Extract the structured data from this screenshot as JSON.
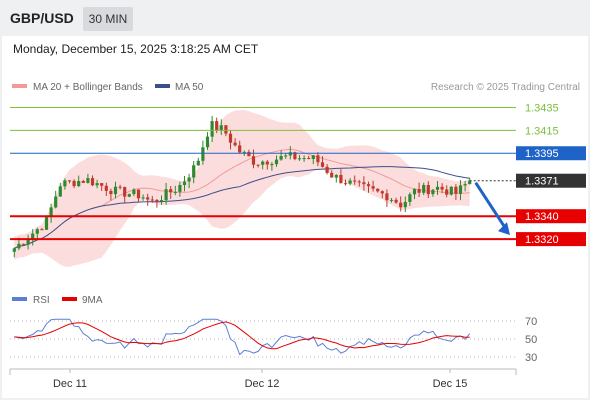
{
  "header": {
    "symbol": "GBP/USD",
    "timeframe": "30 MIN"
  },
  "timestamp": "Monday, December 15, 2025 3:18:25 AM CET",
  "legend": {
    "ma20": "MA 20 + Bollinger Bands",
    "ma50": "MA 50",
    "credit": "Research © 2025 Trading Central"
  },
  "rsi_legend": {
    "rsi": "RSI",
    "ma": "9MA"
  },
  "colors": {
    "resistance": "#7cbf3c",
    "pivot": "#1e63c8",
    "support": "#e60000",
    "candle_up": "#2f8a2f",
    "candle_down": "#c0392b",
    "band_fill": "#fbd7d7",
    "ma20": "#f29a9a",
    "ma50": "#3a4f8c",
    "rsi": "#5b7fd6",
    "rsi_ma": "#e60000",
    "arrow": "#1e63c8"
  },
  "chart_data": {
    "type": "candlestick",
    "y_range": [
      1.33,
      1.3445
    ],
    "levels": [
      {
        "role": "resistance",
        "label": "1.3435",
        "value": 1.3435
      },
      {
        "role": "resistance",
        "label": "1.3415",
        "value": 1.3415
      },
      {
        "role": "pivot",
        "label": "1.3395",
        "value": 1.3395
      },
      {
        "role": "last",
        "label": "1.3371",
        "value": 1.3371
      },
      {
        "role": "support",
        "label": "1.3340",
        "value": 1.334
      },
      {
        "role": "support",
        "label": "1.3320",
        "value": 1.332
      }
    ],
    "forecast": {
      "from": 1.3371,
      "to": 1.332
    },
    "x_ticks": [
      "Dec 11",
      "Dec 12",
      "Dec 15"
    ],
    "rsi": {
      "levels": [
        70,
        50,
        30
      ],
      "y_range": [
        20,
        80
      ]
    }
  }
}
